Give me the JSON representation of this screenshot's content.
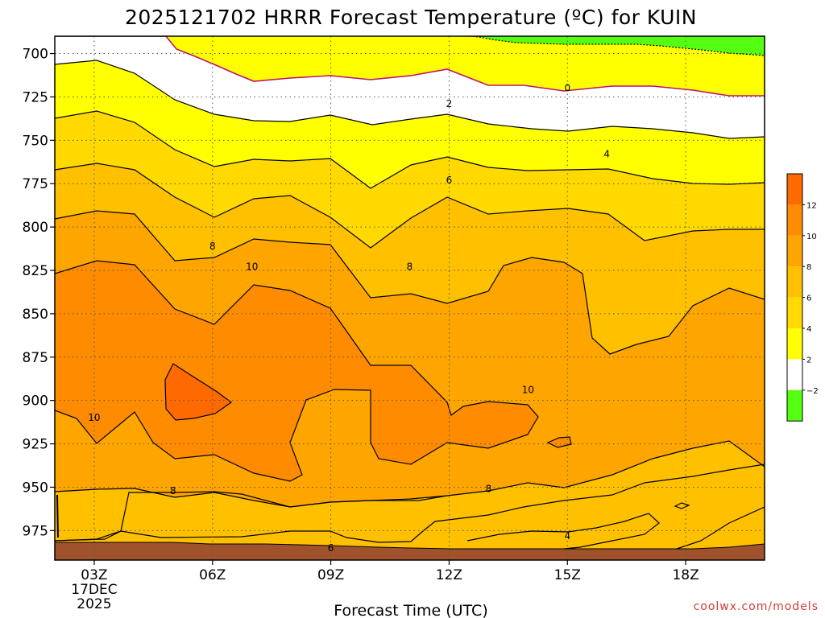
{
  "chart_data": {
    "type": "heatmap",
    "title": "2025121702 HRRR Forecast Temperature (ºC) for KUIN",
    "xlabel": "Forecast Time (UTC)",
    "ylabel": "",
    "y_axis": {
      "label": "",
      "ticks": [
        700,
        725,
        750,
        775,
        800,
        825,
        850,
        875,
        900,
        925,
        950,
        975
      ],
      "range": [
        690,
        992
      ],
      "inverted": true
    },
    "x_axis": {
      "range_hours": [
        2,
        20
      ],
      "ticks": [
        {
          "hour": 3,
          "label": "03Z",
          "date": "17DEC",
          "year": "2025"
        },
        {
          "hour": 6,
          "label": "06Z"
        },
        {
          "hour": 9,
          "label": "09Z"
        },
        {
          "hour": 12,
          "label": "12Z"
        },
        {
          "hour": 15,
          "label": "15Z"
        },
        {
          "hour": 18,
          "label": "18Z"
        }
      ]
    },
    "grid": true,
    "contour_interval_c": 2,
    "contour_labels": [
      {
        "value": "0",
        "hour": 15.0,
        "pressure": 720
      },
      {
        "value": "2",
        "hour": 12.0,
        "pressure": 729
      },
      {
        "value": "4",
        "hour": 16.0,
        "pressure": 758
      },
      {
        "value": "6",
        "hour": 12.0,
        "pressure": 773
      },
      {
        "value": "8",
        "hour": 6.0,
        "pressure": 811
      },
      {
        "value": "10",
        "hour": 7.0,
        "pressure": 823
      },
      {
        "value": "8",
        "hour": 11.0,
        "pressure": 823
      },
      {
        "value": "10",
        "hour": 14.0,
        "pressure": 894
      },
      {
        "value": "10",
        "hour": 3.0,
        "pressure": 910
      },
      {
        "value": "8",
        "hour": 5.0,
        "pressure": 952
      },
      {
        "value": "8",
        "hour": 13.0,
        "pressure": 951
      },
      {
        "value": "4",
        "hour": 15.0,
        "pressure": 978
      },
      {
        "value": "6",
        "hour": 9.0,
        "pressure": 985
      }
    ],
    "colorbar": {
      "ticks": [
        "12",
        "10",
        "8",
        "6",
        "4",
        "2",
        "−2"
      ],
      "colors": [
        {
          "level": ">12",
          "color": "#ff6a00"
        },
        {
          "level": "10-12",
          "color": "#ff8c00"
        },
        {
          "level": "8-10",
          "color": "#ffa500"
        },
        {
          "level": "6-8",
          "color": "#ffc000"
        },
        {
          "level": "4-6",
          "color": "#ffd900"
        },
        {
          "level": "2-4",
          "color": "#ffff00"
        },
        {
          "level": "0-2",
          "color": "#ffffff"
        },
        {
          "level": "<0",
          "color": "#55ff11"
        }
      ]
    },
    "surface_color": "#a0522d"
  },
  "credit": "coolwx.com/models"
}
